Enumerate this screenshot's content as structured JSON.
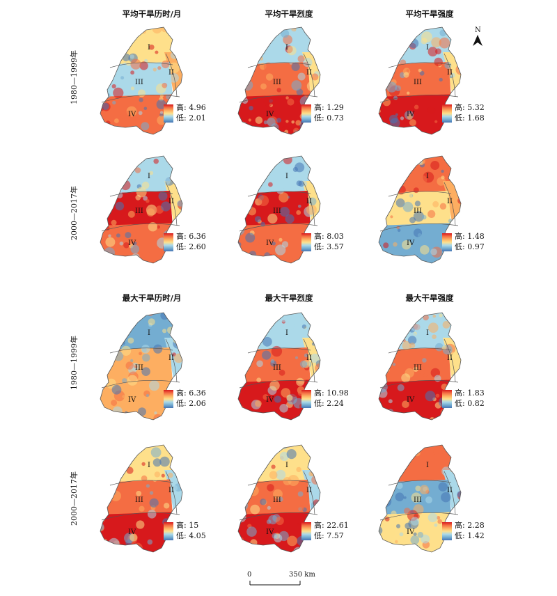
{
  "column_titles": {
    "top": [
      "平均干旱历时/月",
      "平均干旱烈度",
      "平均干旱强度"
    ],
    "bottom": [
      "最大干旱历时/月",
      "最大干旱烈度",
      "最大干旱强度"
    ]
  },
  "row_labels": [
    "1980—1999年",
    "2000—2017年",
    "1980—1999年",
    "2000—2017年"
  ],
  "region_labels": [
    "I",
    "II",
    "III",
    "IV"
  ],
  "legend_high_prefix": "高:",
  "legend_low_prefix": "低:",
  "panels": [
    {
      "id": "avg-dur-1980",
      "high": "4.96",
      "low": "2.01",
      "dominant": "mixed-warm"
    },
    {
      "id": "avg-sev-1980",
      "high": "1.29",
      "low": "0.73",
      "dominant": "warm-south"
    },
    {
      "id": "avg-int-1980",
      "high": "5.32",
      "low": "1.68",
      "dominant": "warm-south"
    },
    {
      "id": "avg-dur-2000",
      "high": "6.36",
      "low": "2.60",
      "dominant": "warm-center"
    },
    {
      "id": "avg-sev-2000",
      "high": "8.03",
      "low": "3.57",
      "dominant": "warm-center"
    },
    {
      "id": "avg-int-2000",
      "high": "1.48",
      "low": "0.97",
      "dominant": "warm-north"
    },
    {
      "id": "max-dur-1980",
      "high": "6.36",
      "low": "2.06",
      "dominant": "orange"
    },
    {
      "id": "max-sev-1980",
      "high": "10.98",
      "low": "2.24",
      "dominant": "warm-south"
    },
    {
      "id": "max-int-1980",
      "high": "1.83",
      "low": "0.82",
      "dominant": "warm-south"
    },
    {
      "id": "max-dur-2000",
      "high": "15",
      "low": "4.05",
      "dominant": "warm-southwest"
    },
    {
      "id": "max-sev-2000",
      "high": "22.61",
      "low": "7.57",
      "dominant": "warm-southwest"
    },
    {
      "id": "max-int-2000",
      "high": "2.28",
      "low": "1.42",
      "dominant": "mixed"
    }
  ],
  "north_label": "N",
  "scale": {
    "start": "0",
    "end": "350 km"
  },
  "colors": {
    "high": "#d7191c",
    "mid": "#fee08b",
    "low": "#4575b4",
    "boundary": "#555555"
  }
}
